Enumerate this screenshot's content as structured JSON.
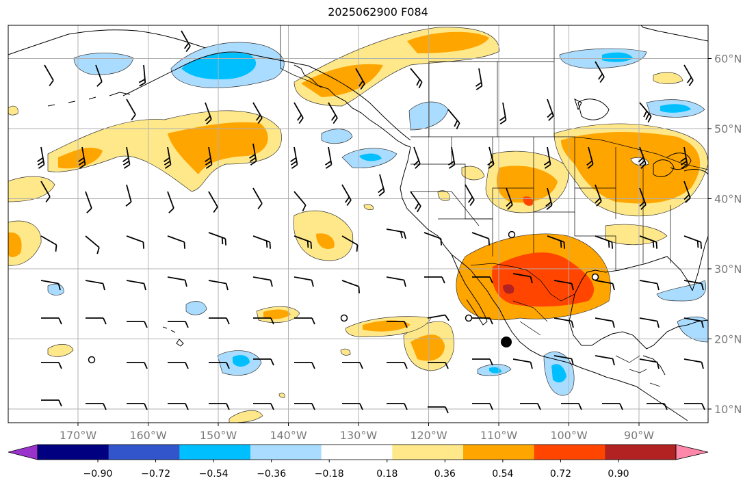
{
  "title": "2025062900 F084",
  "lon_labels": [
    {
      "lon": -170,
      "text": "170°W"
    },
    {
      "lon": -160,
      "text": "160°W"
    },
    {
      "lon": -150,
      "text": "150°W"
    },
    {
      "lon": -140,
      "text": "140°W"
    },
    {
      "lon": -130,
      "text": "130°W"
    },
    {
      "lon": -120,
      "text": "120°W"
    },
    {
      "lon": -110,
      "text": "110°W"
    },
    {
      "lon": -100,
      "text": "100°W"
    },
    {
      "lon": -90,
      "text": "90°W"
    }
  ],
  "lat_labels": [
    {
      "lat": 60,
      "text": "60°N"
    },
    {
      "lat": 50,
      "text": "50°N"
    },
    {
      "lat": 40,
      "text": "40°N"
    },
    {
      "lat": 30,
      "text": "30°N"
    },
    {
      "lat": 20,
      "text": "20°N"
    },
    {
      "lat": 10,
      "text": "10°N"
    }
  ],
  "colorbar": {
    "colors": [
      "#9933cc",
      "#000080",
      "#3355cc",
      "#00bfff",
      "#aadcff",
      "#ffffff",
      "#ffe88a",
      "#ffa500",
      "#ff4500",
      "#b22222",
      "#ff88aa"
    ],
    "labels": [
      "−0.90",
      "−0.72",
      "−0.54",
      "−0.36",
      "−0.18",
      "0.18",
      "0.36",
      "0.54",
      "0.72",
      "0.90"
    ]
  },
  "marker_color": "#000000"
}
